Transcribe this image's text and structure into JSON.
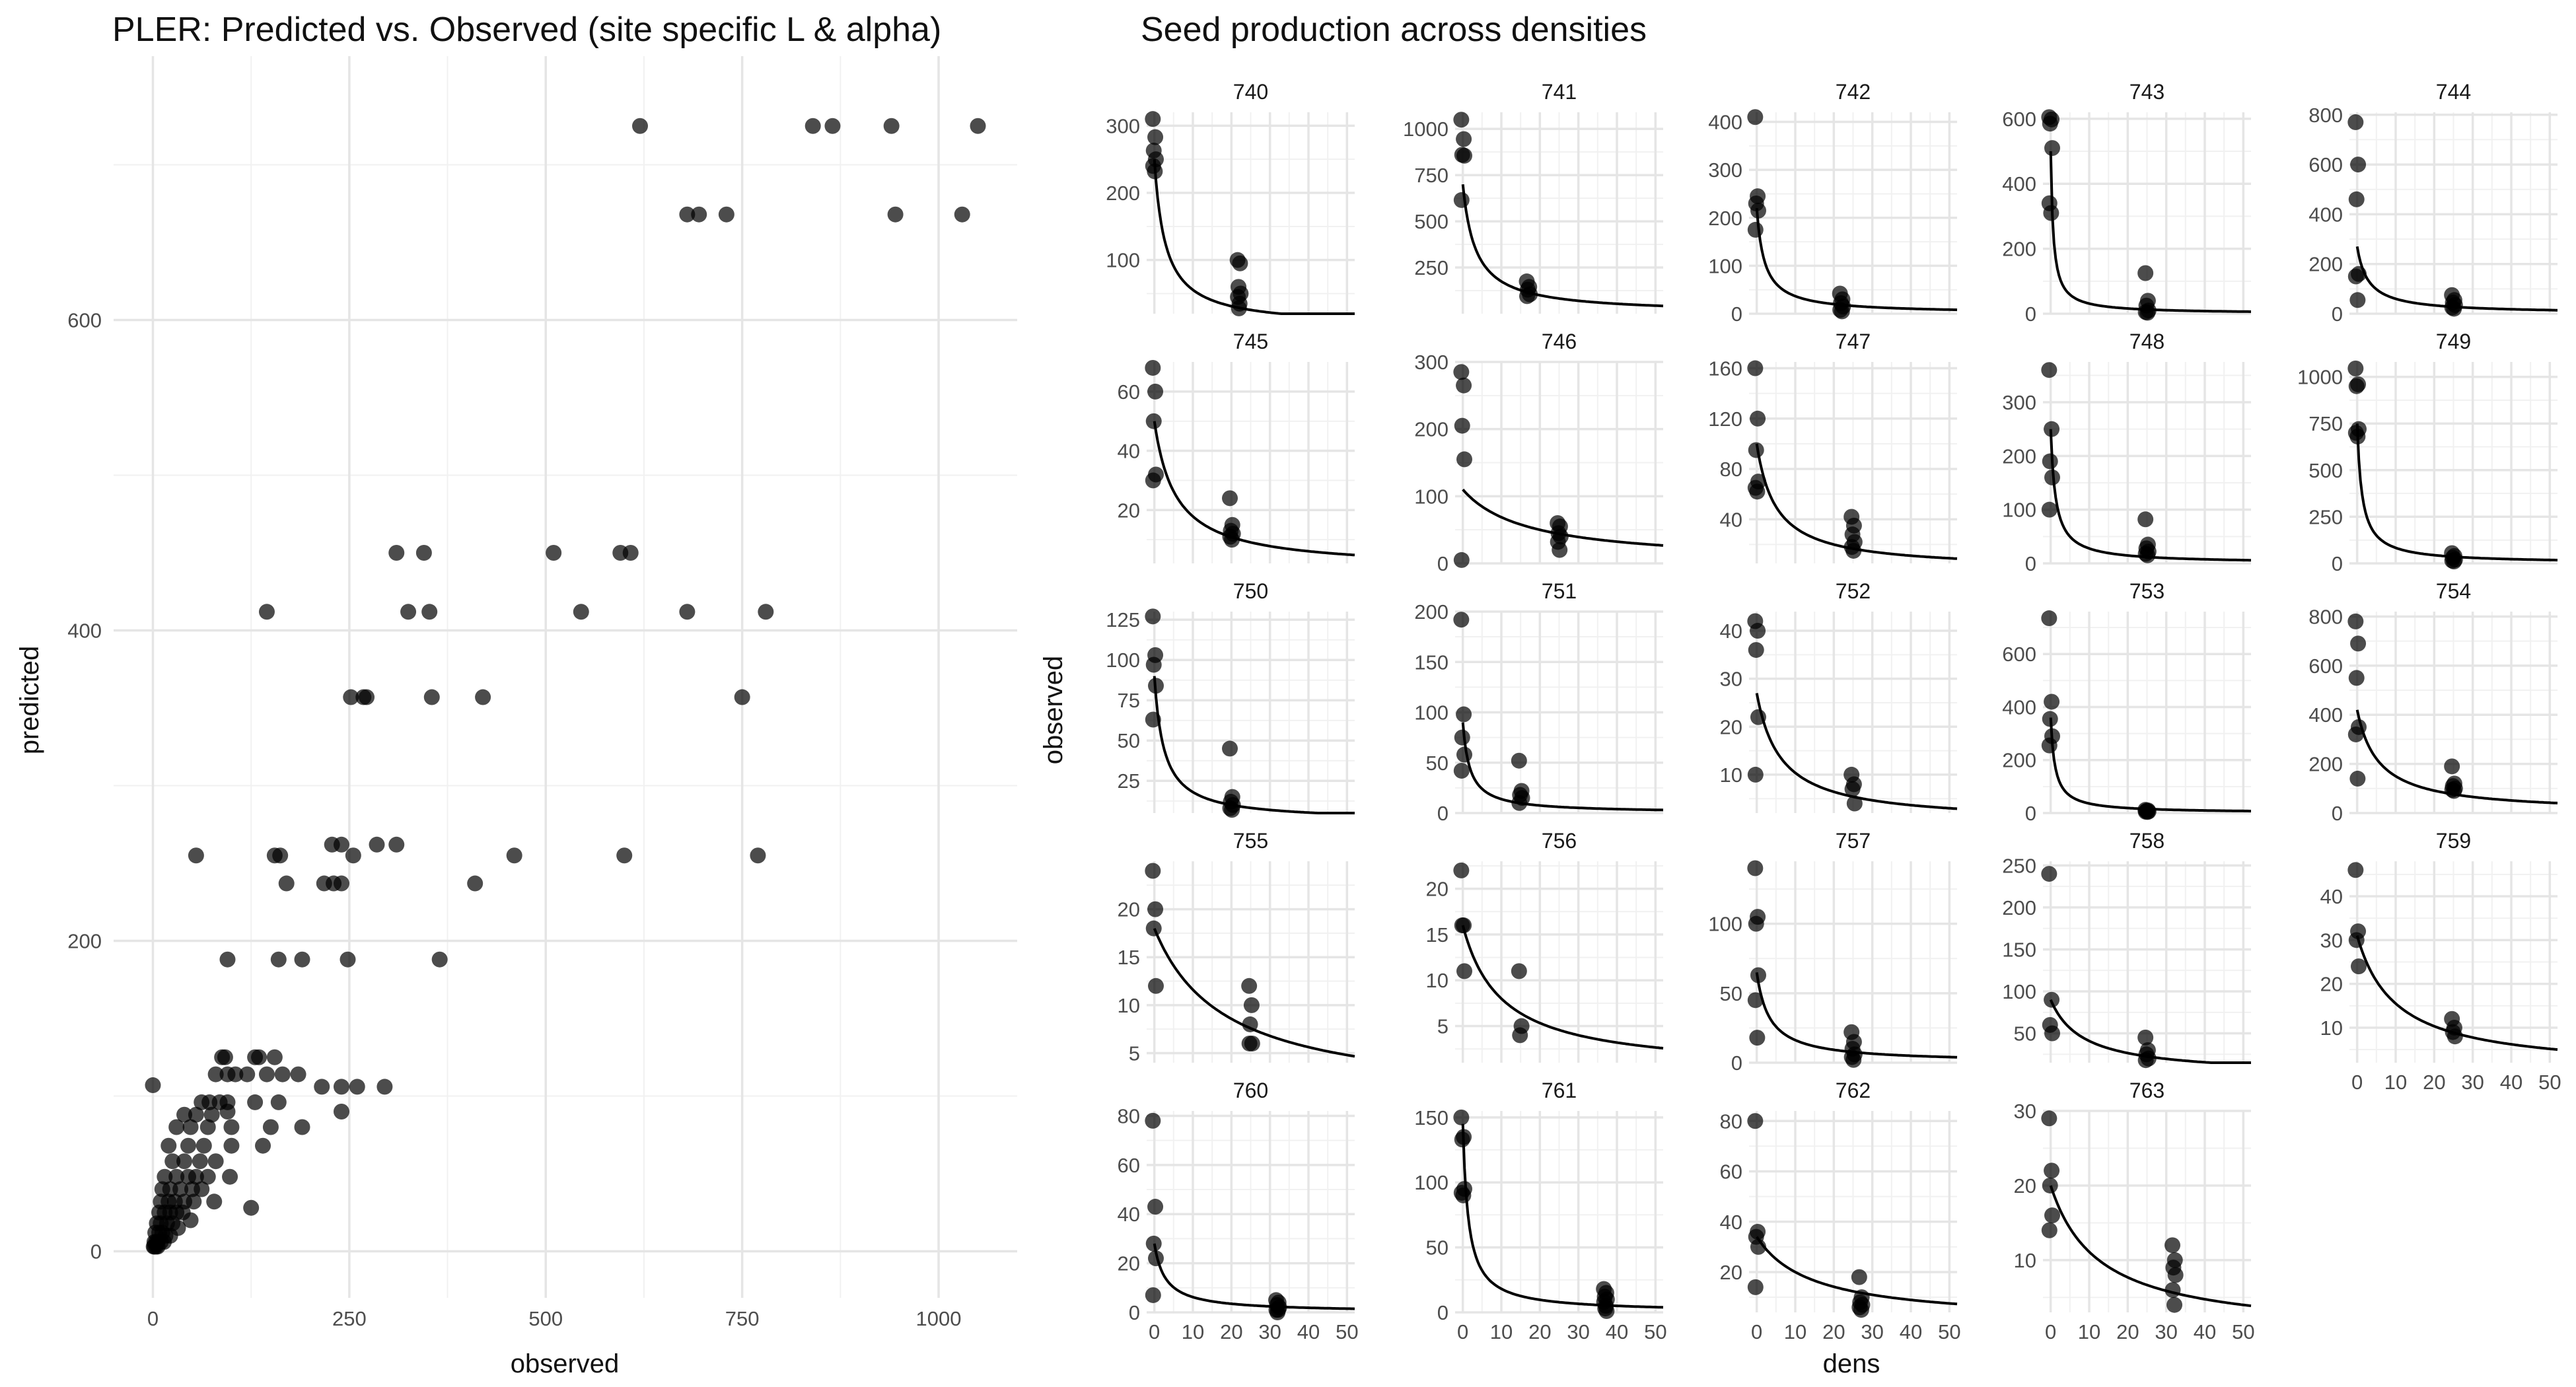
{
  "chart_data": [
    {
      "type": "scatter",
      "title": "PLER: Predicted vs. Observed (site specific L & alpha)",
      "xlabel": "observed",
      "ylabel": "predicted",
      "xlim": [
        -50,
        1100
      ],
      "ylim": [
        -30,
        770
      ],
      "xticks": [
        0,
        250,
        500,
        750,
        1000
      ],
      "yticks": [
        0,
        200,
        400,
        600
      ],
      "grid": true,
      "points": [
        [
          620,
          725
        ],
        [
          840,
          725
        ],
        [
          865,
          725
        ],
        [
          940,
          725
        ],
        [
          1050,
          725
        ],
        [
          680,
          668
        ],
        [
          695,
          668
        ],
        [
          730,
          668
        ],
        [
          945,
          668
        ],
        [
          1030,
          668
        ],
        [
          310,
          450
        ],
        [
          345,
          450
        ],
        [
          510,
          450
        ],
        [
          595,
          450
        ],
        [
          608,
          450
        ],
        [
          145,
          412
        ],
        [
          325,
          412
        ],
        [
          352,
          412
        ],
        [
          545,
          412
        ],
        [
          680,
          412
        ],
        [
          780,
          412
        ],
        [
          252,
          357
        ],
        [
          268,
          357
        ],
        [
          272,
          357
        ],
        [
          355,
          357
        ],
        [
          420,
          357
        ],
        [
          750,
          357
        ],
        [
          55,
          255
        ],
        [
          155,
          255
        ],
        [
          162,
          255
        ],
        [
          255,
          255
        ],
        [
          460,
          255
        ],
        [
          600,
          255
        ],
        [
          770,
          255
        ],
        [
          228,
          262
        ],
        [
          240,
          262
        ],
        [
          285,
          262
        ],
        [
          310,
          262
        ],
        [
          170,
          237
        ],
        [
          218,
          237
        ],
        [
          230,
          237
        ],
        [
          240,
          237
        ],
        [
          410,
          237
        ],
        [
          95,
          188
        ],
        [
          160,
          188
        ],
        [
          190,
          188
        ],
        [
          248,
          188
        ],
        [
          365,
          188
        ],
        [
          88,
          125
        ],
        [
          92,
          125
        ],
        [
          130,
          125
        ],
        [
          135,
          125
        ],
        [
          155,
          125
        ],
        [
          80,
          114
        ],
        [
          95,
          114
        ],
        [
          105,
          114
        ],
        [
          120,
          114
        ],
        [
          145,
          114
        ],
        [
          165,
          114
        ],
        [
          185,
          114
        ],
        [
          215,
          106
        ],
        [
          240,
          106
        ],
        [
          260,
          106
        ],
        [
          295,
          106
        ],
        [
          0,
          107
        ],
        [
          62,
          96
        ],
        [
          72,
          96
        ],
        [
          85,
          96
        ],
        [
          95,
          96
        ],
        [
          130,
          96
        ],
        [
          160,
          96
        ],
        [
          40,
          88
        ],
        [
          55,
          88
        ],
        [
          75,
          88
        ],
        [
          95,
          90
        ],
        [
          240,
          90
        ],
        [
          30,
          80
        ],
        [
          48,
          80
        ],
        [
          70,
          80
        ],
        [
          100,
          80
        ],
        [
          150,
          80
        ],
        [
          190,
          80
        ],
        [
          20,
          68
        ],
        [
          45,
          68
        ],
        [
          65,
          68
        ],
        [
          100,
          68
        ],
        [
          140,
          68
        ],
        [
          25,
          58
        ],
        [
          40,
          58
        ],
        [
          60,
          58
        ],
        [
          80,
          58
        ],
        [
          15,
          48
        ],
        [
          30,
          48
        ],
        [
          45,
          48
        ],
        [
          55,
          48
        ],
        [
          70,
          48
        ],
        [
          98,
          48
        ],
        [
          12,
          40
        ],
        [
          22,
          40
        ],
        [
          35,
          40
        ],
        [
          50,
          40
        ],
        [
          62,
          40
        ],
        [
          10,
          32
        ],
        [
          20,
          32
        ],
        [
          28,
          32
        ],
        [
          40,
          32
        ],
        [
          52,
          32
        ],
        [
          78,
          32
        ],
        [
          125,
          28
        ],
        [
          8,
          25
        ],
        [
          15,
          25
        ],
        [
          22,
          25
        ],
        [
          30,
          25
        ],
        [
          38,
          25
        ],
        [
          48,
          20
        ],
        [
          5,
          18
        ],
        [
          10,
          18
        ],
        [
          18,
          18
        ],
        [
          25,
          18
        ],
        [
          32,
          15
        ],
        [
          3,
          12
        ],
        [
          8,
          12
        ],
        [
          12,
          12
        ],
        [
          16,
          10
        ],
        [
          22,
          10
        ],
        [
          2,
          6
        ],
        [
          4,
          6
        ],
        [
          6,
          6
        ],
        [
          10,
          6
        ],
        [
          14,
          6
        ],
        [
          1,
          3
        ],
        [
          2,
          3
        ],
        [
          4,
          3
        ],
        [
          6,
          3
        ]
      ]
    },
    {
      "type": "scatter",
      "title": "Seed production across densities",
      "xlabel": "dens",
      "ylabel": "observed",
      "xlim": [
        -2,
        52
      ],
      "xticks": [
        0,
        10,
        20,
        30,
        40,
        50
      ],
      "grid": true,
      "panels": [
        {
          "label": "740",
          "ylim": [
            20,
            320
          ],
          "yticks": [
            100,
            200,
            300
          ],
          "a": 250,
          "b": 0.35,
          "dens": 22,
          "p0": [
            310,
            283,
            263,
            250,
            240,
            232
          ],
          "p1": [
            100,
            95,
            60,
            50,
            45,
            35,
            28
          ]
        },
        {
          "label": "741",
          "ylim": [
            0,
            1090
          ],
          "yticks": [
            250,
            500,
            750,
            1000
          ],
          "a": 700,
          "b": 0.3,
          "dens": 17,
          "p0": [
            1050,
            945,
            860,
            855,
            615
          ],
          "p1": [
            175,
            145,
            130,
            105,
            95
          ]
        },
        {
          "label": "742",
          "ylim": [
            0,
            420
          ],
          "yticks": [
            0,
            100,
            200,
            300,
            400
          ],
          "a": 220,
          "b": 0.5,
          "dens": 22,
          "p0": [
            410,
            245,
            230,
            215,
            175
          ],
          "p1": [
            42,
            30,
            22,
            15,
            8,
            5
          ]
        },
        {
          "label": "743",
          "ylim": [
            0,
            620
          ],
          "yticks": [
            0,
            200,
            400,
            600
          ],
          "a": 500,
          "b": 1.5,
          "dens": 25,
          "p0": [
            605,
            598,
            585,
            510,
            340,
            310
          ],
          "p1": [
            125,
            40,
            25,
            10,
            5,
            3
          ]
        },
        {
          "label": "744",
          "ylim": [
            0,
            810
          ],
          "yticks": [
            0,
            200,
            400,
            600,
            800
          ],
          "a": 270,
          "b": 0.35,
          "dens": 25,
          "p0": [
            770,
            600,
            460,
            160,
            150,
            55
          ],
          "p1": [
            75,
            55,
            45,
            35,
            25,
            20
          ]
        },
        {
          "label": "745",
          "ylim": [
            2,
            70
          ],
          "yticks": [
            20,
            40,
            60
          ],
          "a": 50,
          "b": 0.18,
          "dens": 20,
          "p0": [
            68,
            60,
            50,
            32,
            30
          ],
          "p1": [
            24,
            15,
            13,
            12,
            11,
            10
          ]
        },
        {
          "label": "746",
          "ylim": [
            0,
            300
          ],
          "yticks": [
            0,
            100,
            200,
            300
          ],
          "a": 110,
          "b": 0.06,
          "dens": 25,
          "p0": [
            285,
            265,
            205,
            155,
            5
          ],
          "p1": [
            60,
            55,
            45,
            40,
            32,
            20
          ]
        },
        {
          "label": "747",
          "ylim": [
            5,
            165
          ],
          "yticks": [
            40,
            80,
            120,
            160
          ],
          "a": 100,
          "b": 0.2,
          "dens": 25,
          "p0": [
            160,
            120,
            95,
            70,
            65,
            62
          ],
          "p1": [
            42,
            35,
            28,
            22,
            18,
            15
          ]
        },
        {
          "label": "748",
          "ylim": [
            0,
            375
          ],
          "yticks": [
            0,
            100,
            200,
            300
          ],
          "a": 250,
          "b": 0.8,
          "dens": 25,
          "p0": [
            360,
            250,
            190,
            160,
            100
          ],
          "p1": [
            82,
            35,
            28,
            22,
            18,
            15
          ]
        },
        {
          "label": "749",
          "ylim": [
            0,
            1080
          ],
          "yticks": [
            0,
            250,
            500,
            750,
            1000
          ],
          "a": 750,
          "b": 0.8,
          "dens": 25,
          "p0": [
            1045,
            960,
            950,
            720,
            700,
            680
          ],
          "p1": [
            55,
            40,
            30,
            20,
            15,
            10
          ]
        },
        {
          "label": "750",
          "ylim": [
            5,
            130
          ],
          "yticks": [
            25,
            50,
            75,
            100,
            125
          ],
          "a": 90,
          "b": 0.4,
          "dens": 20,
          "p0": [
            127,
            103,
            97,
            84,
            63
          ],
          "p1": [
            45,
            15,
            12,
            10,
            8,
            7
          ]
        },
        {
          "label": "751",
          "ylim": [
            0,
            200
          ],
          "yticks": [
            0,
            50,
            100,
            150,
            200
          ],
          "a": 90,
          "b": 0.55,
          "dens": 15,
          "p0": [
            192,
            98,
            75,
            58,
            42
          ],
          "p1": [
            52,
            22,
            18,
            15,
            10
          ]
        },
        {
          "label": "752",
          "ylim": [
            2,
            44
          ],
          "yticks": [
            10,
            20,
            30,
            40
          ],
          "a": 27,
          "b": 0.16,
          "dens": 25,
          "p0": [
            42,
            40,
            36,
            22,
            10
          ],
          "p1": [
            10,
            8,
            7,
            4
          ]
        },
        {
          "label": "753",
          "ylim": [
            0,
            760
          ],
          "yticks": [
            0,
            200,
            400,
            600
          ],
          "a": 360,
          "b": 0.9,
          "dens": 25,
          "p0": [
            735,
            420,
            355,
            290,
            255
          ],
          "p1": [
            12,
            10,
            8,
            6,
            5,
            4
          ]
        },
        {
          "label": "754",
          "ylim": [
            0,
            820
          ],
          "yticks": [
            0,
            200,
            400,
            600,
            800
          ],
          "a": 420,
          "b": 0.18,
          "dens": 25,
          "p0": [
            780,
            690,
            550,
            350,
            320,
            140
          ],
          "p1": [
            190,
            120,
            110,
            100,
            95,
            90
          ]
        },
        {
          "label": "755",
          "ylim": [
            4,
            25
          ],
          "yticks": [
            5,
            10,
            15,
            20
          ],
          "a": 18,
          "b": 0.055,
          "dens": 25,
          "p0": [
            24,
            20,
            18,
            12
          ],
          "p1": [
            12,
            10,
            8,
            6,
            6
          ]
        },
        {
          "label": "756",
          "ylim": [
            1,
            23
          ],
          "yticks": [
            5,
            10,
            15,
            20
          ],
          "a": 16,
          "b": 0.1,
          "dens": 15,
          "p0": [
            22,
            16,
            16,
            11
          ],
          "p1": [
            11,
            5,
            4
          ]
        },
        {
          "label": "757",
          "ylim": [
            0,
            145
          ],
          "yticks": [
            0,
            50,
            100
          ],
          "a": 65,
          "b": 0.3,
          "dens": 25,
          "p0": [
            140,
            105,
            100,
            63,
            45,
            18
          ],
          "p1": [
            22,
            15,
            10,
            6,
            4,
            2
          ]
        },
        {
          "label": "758",
          "ylim": [
            15,
            255
          ],
          "yticks": [
            50,
            100,
            150,
            200,
            250
          ],
          "a": 90,
          "b": 0.12,
          "dens": 25,
          "p0": [
            240,
            90,
            60,
            50
          ],
          "p1": [
            45,
            30,
            25,
            20,
            18
          ]
        },
        {
          "label": "759",
          "ylim": [
            2,
            48
          ],
          "yticks": [
            10,
            20,
            30,
            40
          ],
          "a": 31,
          "b": 0.1,
          "dens": 25,
          "p0": [
            46,
            32,
            30,
            24
          ],
          "p1": [
            12,
            10,
            9,
            8
          ]
        },
        {
          "label": "760",
          "ylim": [
            0,
            82
          ],
          "yticks": [
            0,
            20,
            40,
            60,
            80
          ],
          "a": 28,
          "b": 0.35,
          "dens": 32,
          "p0": [
            78,
            43,
            28,
            22,
            7
          ],
          "p1": [
            5,
            4,
            3,
            2,
            1,
            1,
            0
          ]
        },
        {
          "label": "761",
          "ylim": [
            0,
            155
          ],
          "yticks": [
            0,
            50,
            100,
            150
          ],
          "a": 145,
          "b": 0.7,
          "dens": 37,
          "p0": [
            150,
            135,
            133,
            95,
            92,
            90
          ],
          "p1": [
            18,
            15,
            12,
            10,
            8,
            5,
            3,
            1
          ]
        },
        {
          "label": "762",
          "ylim": [
            4,
            84
          ],
          "yticks": [
            20,
            40,
            60,
            80
          ],
          "a": 34,
          "b": 0.07,
          "dens": 27,
          "p0": [
            80,
            36,
            34,
            30,
            14
          ],
          "p1": [
            18,
            10,
            8,
            7,
            6,
            5
          ]
        },
        {
          "label": "763",
          "ylim": [
            3,
            30
          ],
          "yticks": [
            10,
            20,
            30
          ],
          "a": 20,
          "b": 0.08,
          "dens": 32,
          "p0": [
            29,
            22,
            20,
            16,
            14
          ],
          "p1": [
            12,
            10,
            9,
            8,
            6,
            4
          ]
        }
      ]
    }
  ]
}
